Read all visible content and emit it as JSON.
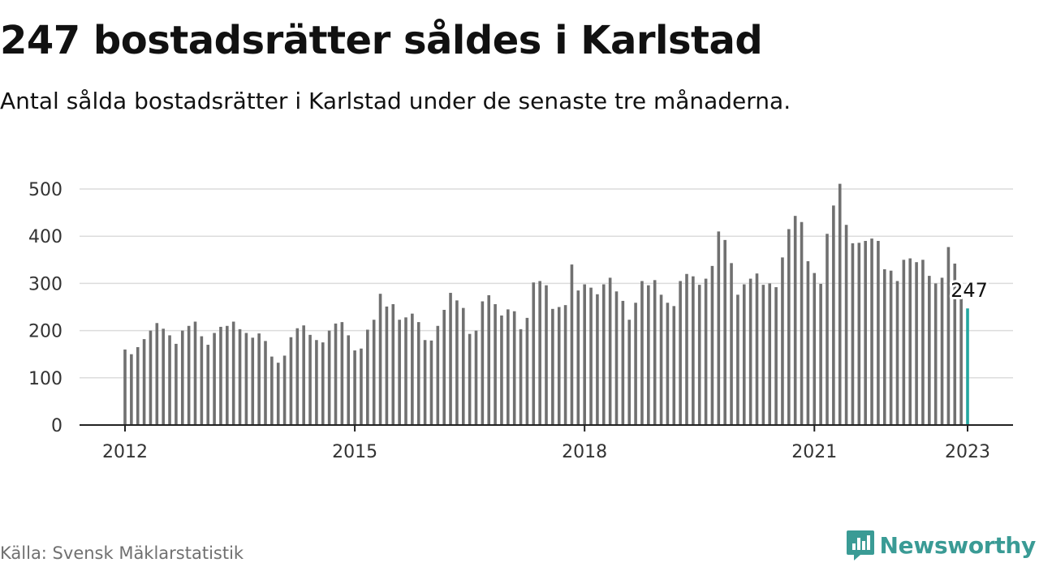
{
  "title": "247 bostadsrätter såldes i Karlstad",
  "subtitle": "Antal sålda bostadsrätter i Karlstad under de senaste tre månaderna.",
  "source": "Källa: Svensk Mäklarstatistik",
  "brand": {
    "name": "Newsworthy",
    "icon": "newsworthy-logo-icon",
    "color": "#3a9b95"
  },
  "chart_data": {
    "type": "bar",
    "x_start": "2012-01",
    "x_end": "2023-01",
    "x_ticks": [
      "2012",
      "2015",
      "2018",
      "2021",
      "2023"
    ],
    "y_ticks": [
      "0",
      "100",
      "200",
      "300",
      "400",
      "500"
    ],
    "ylim": [
      0,
      530
    ],
    "grid": true,
    "bar_color": "#707070",
    "highlight_color": "#23a7a0",
    "highlight_label": "247",
    "values": [
      160,
      150,
      165,
      182,
      200,
      216,
      204,
      190,
      172,
      200,
      210,
      219,
      188,
      170,
      195,
      208,
      210,
      219,
      203,
      195,
      185,
      194,
      178,
      145,
      132,
      147,
      186,
      205,
      211,
      191,
      180,
      175,
      200,
      215,
      218,
      190,
      158,
      162,
      202,
      223,
      278,
      251,
      256,
      223,
      228,
      236,
      218,
      180,
      179,
      210,
      244,
      280,
      264,
      248,
      193,
      200,
      262,
      275,
      256,
      232,
      245,
      241,
      203,
      227,
      302,
      305,
      296,
      246,
      250,
      254,
      340,
      285,
      298,
      291,
      277,
      298,
      312,
      283,
      263,
      223,
      259,
      305,
      296,
      307,
      276,
      259,
      252,
      305,
      320,
      315,
      297,
      310,
      337,
      410,
      392,
      343,
      276,
      298,
      310,
      321,
      297,
      300,
      292,
      355,
      415,
      443,
      430,
      347,
      322,
      299,
      405,
      465,
      511,
      424,
      385,
      386,
      390,
      395,
      390,
      330,
      327,
      305,
      350,
      353,
      345,
      350,
      316,
      300,
      312,
      377,
      342,
      270,
      247
    ]
  }
}
